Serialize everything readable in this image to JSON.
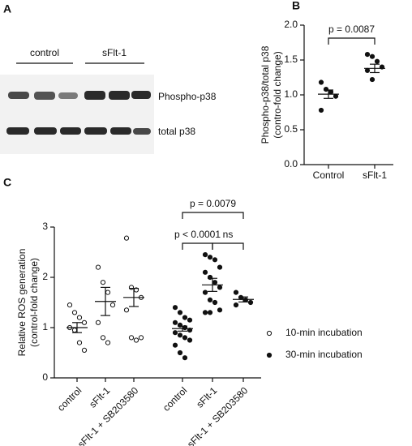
{
  "blot": {
    "panel_label": "A",
    "groups": [
      "control",
      "sFlt-1"
    ],
    "bands": [
      "Phospho-p38",
      "total p38"
    ]
  },
  "chart_data": [
    {
      "type": "dotplot",
      "panel_label": "B",
      "ylabel": [
        "Phospho-p38/total p38",
        "(contro-fold change)"
      ],
      "ylim": [
        0,
        2.0
      ],
      "yticks": [
        {
          "value": 0,
          "label": "0.0"
        },
        {
          "value": 0.5,
          "label": "0.5"
        },
        {
          "value": 1.0,
          "label": "1.0"
        },
        {
          "value": 1.5,
          "label": "1.5"
        },
        {
          "value": 2.0,
          "label": "2.0"
        }
      ],
      "groups": [
        {
          "color": "#111111",
          "filled": true,
          "categories": [
            "Control",
            "sFlt-1"
          ],
          "points": [
            [
              1.18,
              1.08,
              1.04,
              0.98,
              0.78
            ],
            [
              1.58,
              1.55,
              1.48,
              1.4,
              1.35,
              1.22
            ]
          ],
          "means": [
            1.01,
            1.38
          ],
          "sem": [
            0.06,
            0.06
          ]
        }
      ],
      "comparisons": [
        {
          "label": "p = 0.0087",
          "from": 0,
          "to": 1
        }
      ]
    },
    {
      "type": "dotplot",
      "panel_label": "C",
      "ylabel": [
        "Relative ROS generation",
        "(control-fold change)"
      ],
      "ylim": [
        0,
        3
      ],
      "yticks": [
        0,
        1,
        2,
        3
      ],
      "groups": [
        {
          "name": "10-min incubation",
          "color": "#111111",
          "filled": false,
          "categories": [
            "control",
            "sFlt-1",
            "sFlt-1 + SB203580"
          ],
          "points": [
            [
              1.45,
              1.3,
              1.2,
              1.1,
              1.0,
              0.95,
              0.7,
              0.55
            ],
            [
              2.2,
              1.9,
              1.7,
              1.45,
              1.1,
              0.8,
              0.7
            ],
            [
              2.78,
              1.8,
              1.75,
              1.6,
              1.35,
              0.8,
              0.75,
              0.8
            ]
          ],
          "means": [
            1.0,
            1.52,
            1.6
          ],
          "sem": [
            0.1,
            0.28,
            0.18
          ]
        },
        {
          "name": "30-min incubation",
          "color": "#111111",
          "filled": true,
          "categories": [
            "control",
            "sFlt-1",
            "sFlt-1 + SB203580"
          ],
          "points": [
            [
              1.4,
              1.3,
              1.2,
              1.15,
              1.1,
              1.05,
              1.0,
              0.95,
              0.9,
              0.85,
              0.8,
              0.75,
              0.65,
              0.5,
              0.4
            ],
            [
              2.45,
              2.4,
              2.35,
              2.2,
              2.1,
              2.0,
              1.9,
              1.8,
              1.7,
              1.55,
              1.5,
              1.35,
              1.3,
              1.3
            ],
            [
              1.7,
              1.6,
              1.55,
              1.5,
              1.45
            ]
          ],
          "means": [
            0.98,
            1.85,
            1.56
          ],
          "sem": [
            0.05,
            0.13,
            0.05
          ]
        }
      ],
      "comparisons": [
        {
          "label": "p < 0.0001",
          "from": 3,
          "to": 4
        },
        {
          "label": "ns",
          "from": 4,
          "to": 5
        },
        {
          "label": "p = 0.0079",
          "from": 3,
          "to": 5
        }
      ]
    }
  ]
}
